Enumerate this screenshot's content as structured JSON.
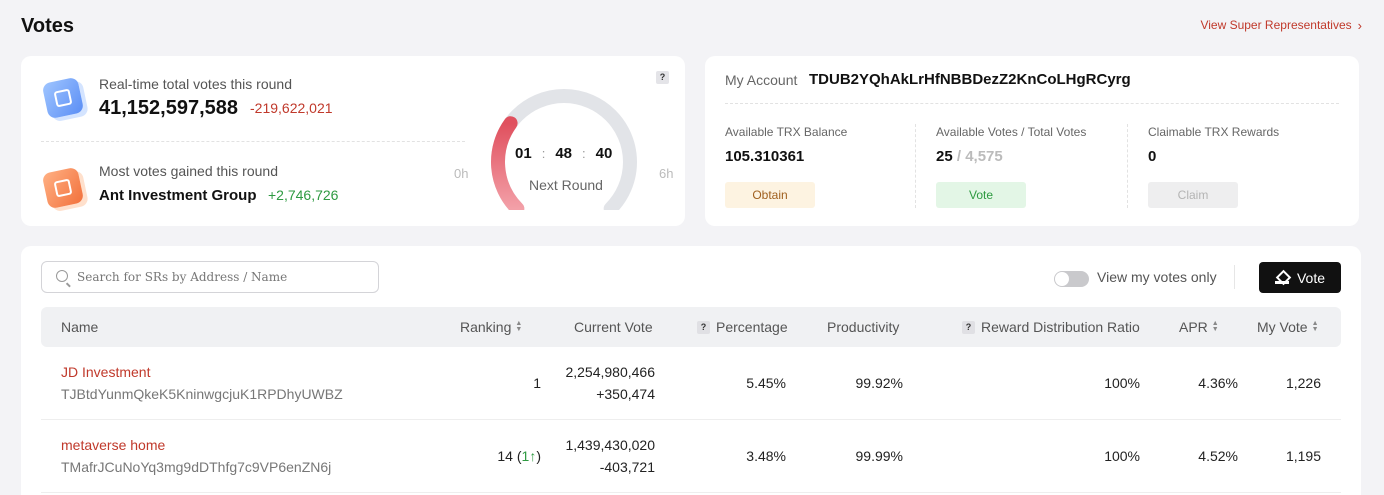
{
  "header": {
    "title": "Votes",
    "sr_link_label": "View Super Representatives",
    "sr_link_icon": "chevron-right-icon"
  },
  "round": {
    "total_votes_label": "Real-time total votes this round",
    "total_votes_value": "41,152,597,588",
    "total_votes_delta": "-219,622,021",
    "most_votes_label": "Most votes gained this round",
    "most_votes_name": "Ant Investment Group",
    "most_votes_delta": "+2,746,726",
    "help_badge": "?",
    "timer": {
      "hours": "01",
      "minutes": "48",
      "seconds": "40",
      "separator": ":"
    },
    "next_round_label": "Next Round",
    "gauge_min_label": "0h",
    "gauge_max_label": "6h",
    "gauge_progress": 0.3,
    "gauge_color_start": "#e0505e",
    "gauge_color_end": "#f3a0a8"
  },
  "account": {
    "label": "My Account",
    "address": "TDUB2YQhAkLrHfNBBDezZ2KnCoLHgRCyrg",
    "balance_label": "Available TRX Balance",
    "balance_value": "105.310361",
    "obtain_label": "Obtain",
    "votes_label": "Available Votes / Total Votes",
    "votes_available": "25",
    "votes_slash": " / ",
    "votes_total": "4,575",
    "vote_label": "Vote",
    "rewards_label": "Claimable TRX Rewards",
    "rewards_value": "0",
    "claim_label": "Claim"
  },
  "toolbar": {
    "search_placeholder": "Search for SRs by Address / Name",
    "toggle_label": "View my votes only",
    "vote_button_label": "Vote"
  },
  "table": {
    "columns": {
      "name": "Name",
      "ranking": "Ranking",
      "current_vote": "Current Vote",
      "percentage": "Percentage",
      "productivity": "Productivity",
      "reward_ratio": "Reward Distribution Ratio",
      "apr": "APR",
      "my_vote": "My Vote",
      "help_badge": "?"
    },
    "rows": [
      {
        "name": "JD Investment",
        "address": "TJBtdYunmQkeK5KninwgcjuK1RPDhyUWBZ",
        "ranking": "1",
        "ranking_change": "",
        "current_vote": "2,254,980,466",
        "vote_delta": "+350,474",
        "percentage": "5.45%",
        "productivity": "99.92%",
        "reward_ratio": "100%",
        "apr": "4.36%",
        "my_vote": "1,226"
      },
      {
        "name": "metaverse home",
        "address": "TMafrJCuNoYq3mg9dDThfg7c9VP6enZN6j",
        "ranking": "14",
        "ranking_change": "1",
        "current_vote": "1,439,430,020",
        "vote_delta": "-403,721",
        "percentage": "3.48%",
        "productivity": "99.99%",
        "reward_ratio": "100%",
        "apr": "4.52%",
        "my_vote": "1,195"
      }
    ]
  }
}
